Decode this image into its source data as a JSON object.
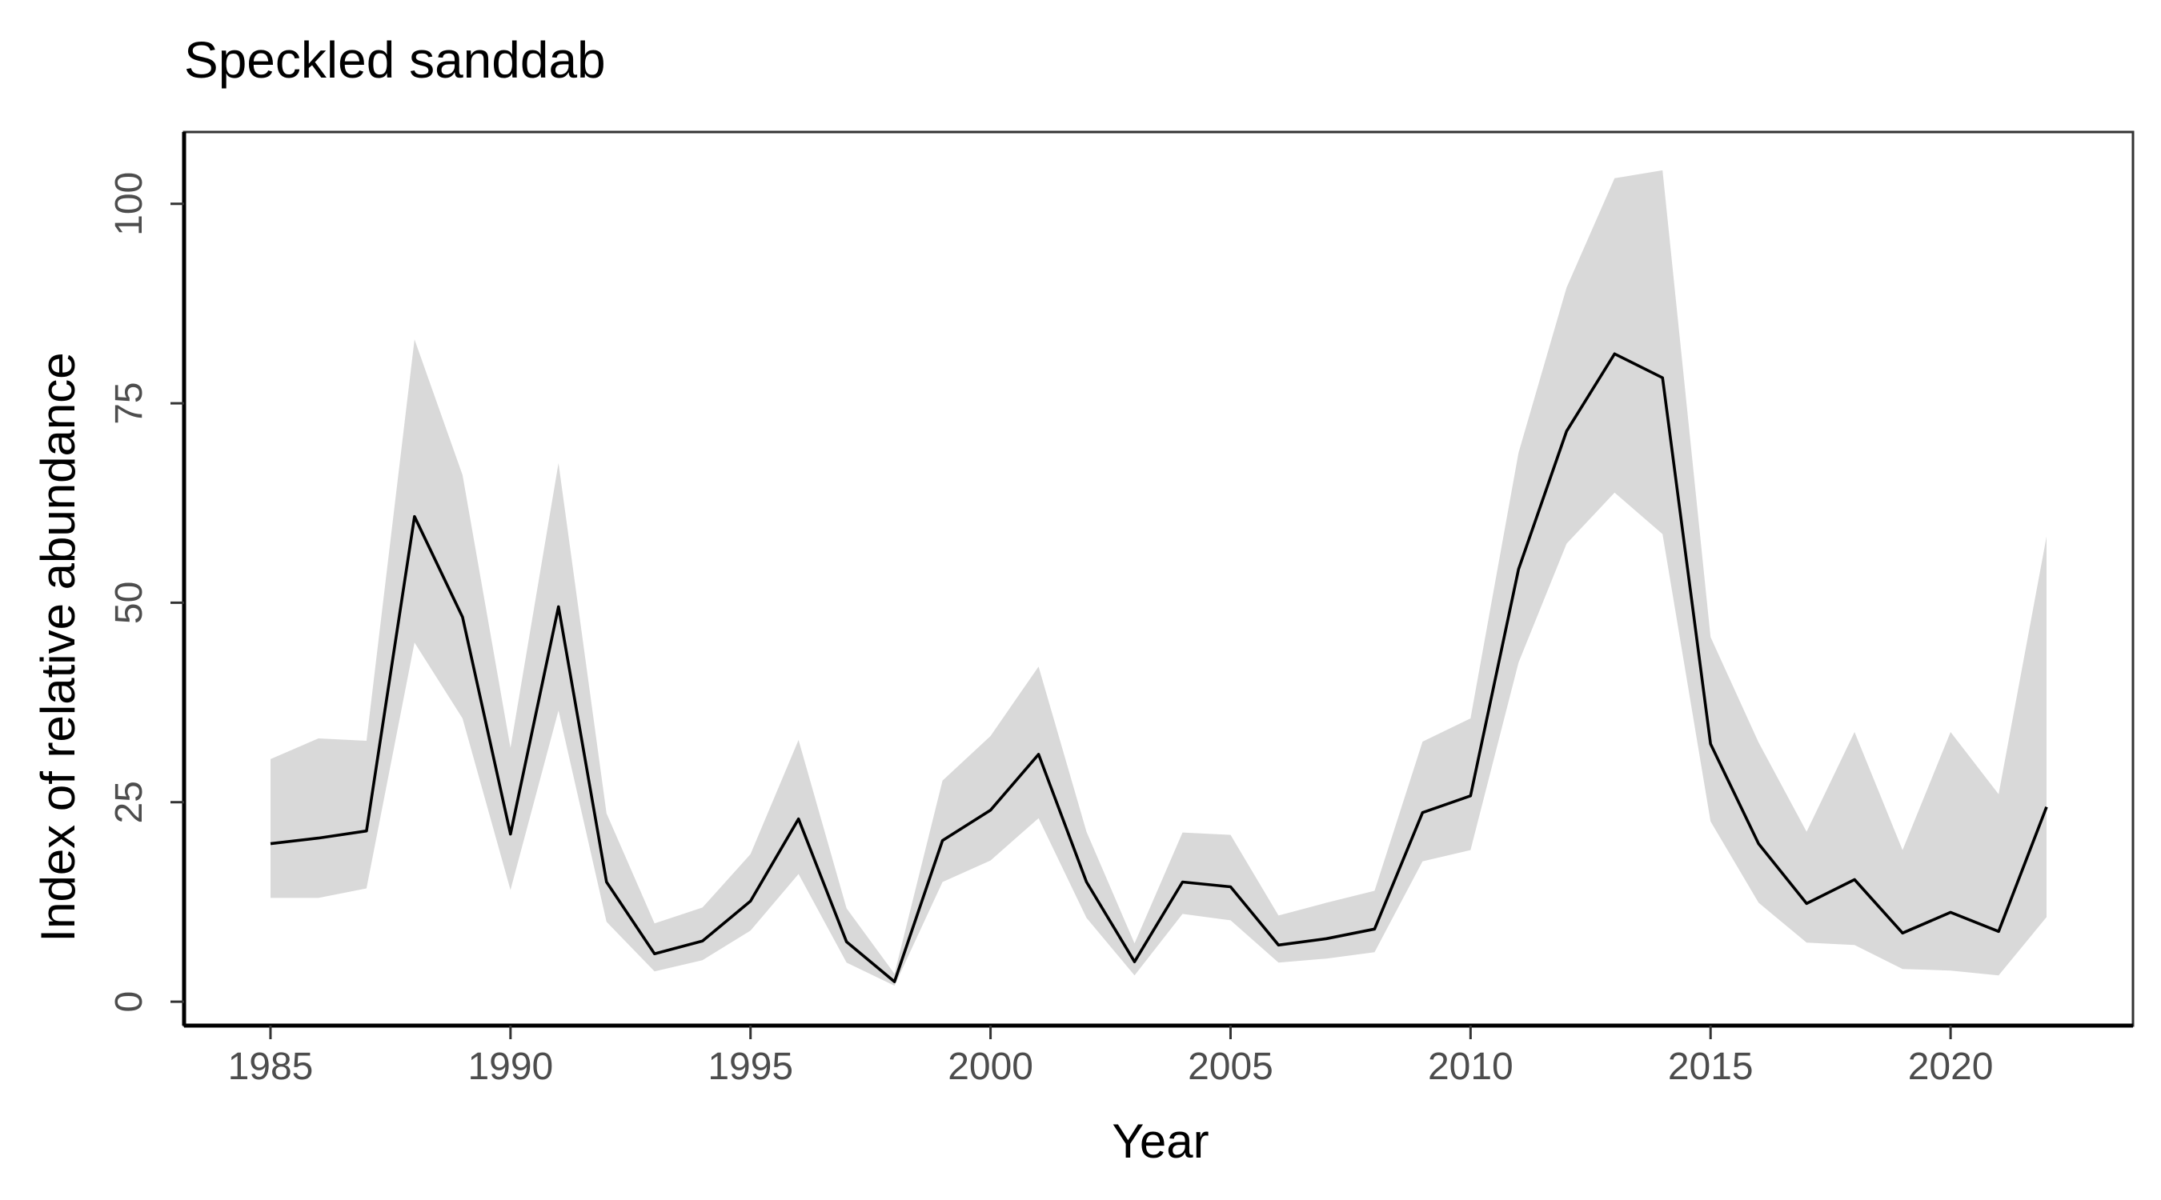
{
  "chart_data": {
    "type": "line",
    "title": "Speckled sanddab",
    "xlabel": "Year",
    "ylabel": "Index of relative abundance",
    "xlim": [
      1983.2,
      2023.8
    ],
    "ylim": [
      -3,
      109
    ],
    "xticks": [
      1985,
      1990,
      1995,
      2000,
      2005,
      2010,
      2015,
      2020
    ],
    "yticks": [
      0,
      25,
      50,
      75,
      100
    ],
    "grid": false,
    "legend": "none",
    "colors": {
      "line": "#000000",
      "band": "#d9d9d9",
      "tick_text": "#4d4d4d"
    },
    "series": [
      {
        "x": [
          1985,
          1986,
          1987,
          1988,
          1989,
          1990,
          1991,
          1992,
          1993,
          1994,
          1995,
          1996,
          1997,
          1998,
          1999,
          2000,
          2001,
          2002,
          2003,
          2004,
          2005,
          2006,
          2007,
          2008,
          2009,
          2010,
          2011,
          2012,
          2013,
          2014,
          2015,
          2016,
          2017,
          2018,
          2019,
          2020,
          2021,
          2022
        ],
        "values": [
          19.8,
          20.5,
          21.4,
          60.8,
          48.2,
          21.0,
          49.5,
          15.0,
          6.0,
          7.6,
          12.6,
          22.9,
          7.5,
          2.5,
          20.2,
          24.0,
          31.0,
          15.0,
          5.0,
          15.0,
          14.4,
          7.1,
          7.9,
          9.1,
          23.7,
          25.8,
          54.2,
          71.5,
          81.2,
          78.2,
          32.3,
          19.8,
          12.3,
          15.3,
          8.6,
          11.2,
          8.8,
          24.4
        ],
        "lower": [
          13.0,
          13.0,
          14.2,
          45.0,
          35.5,
          14.0,
          36.5,
          10.0,
          3.8,
          5.2,
          8.9,
          16.0,
          4.9,
          2.0,
          15.0,
          17.7,
          23.0,
          10.5,
          3.3,
          11.0,
          10.2,
          4.9,
          5.4,
          6.2,
          17.6,
          19.0,
          42.5,
          57.4,
          63.8,
          58.6,
          22.6,
          12.4,
          7.4,
          7.1,
          4.1,
          3.9,
          3.3,
          10.6
        ],
        "upper": [
          30.4,
          33.0,
          32.7,
          83.0,
          66.0,
          31.8,
          67.5,
          23.6,
          9.8,
          11.8,
          18.5,
          32.8,
          11.7,
          3.5,
          27.7,
          33.3,
          42.0,
          21.3,
          7.3,
          21.2,
          20.9,
          10.8,
          12.4,
          13.9,
          32.6,
          35.5,
          68.8,
          89.5,
          103.2,
          104.2,
          45.7,
          32.5,
          21.3,
          33.8,
          19.0,
          33.8,
          26.0,
          58.3
        ]
      }
    ]
  }
}
